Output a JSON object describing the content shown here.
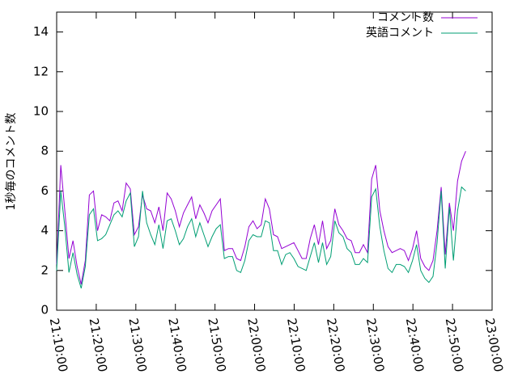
{
  "chart_data": {
    "type": "line",
    "y_label": "1秒毎のコメント数",
    "x": [
      "21:10:00",
      "21:11:02",
      "21:12:04",
      "21:13:06",
      "21:14:08",
      "21:15:10",
      "21:16:12",
      "21:17:14",
      "21:18:16",
      "21:19:18",
      "21:20:20",
      "21:21:22",
      "21:22:24",
      "21:23:26",
      "21:24:28",
      "21:25:30",
      "21:26:32",
      "21:27:34",
      "21:28:36",
      "21:29:38",
      "21:30:40",
      "21:31:42",
      "21:32:44",
      "21:33:46",
      "21:34:48",
      "21:35:50",
      "21:36:52",
      "21:37:54",
      "21:38:56",
      "21:39:58",
      "21:41:00",
      "21:42:02",
      "21:43:04",
      "21:44:06",
      "21:45:08",
      "21:46:10",
      "21:47:12",
      "21:48:14",
      "21:49:16",
      "21:50:18",
      "21:51:20",
      "21:52:22",
      "21:53:24",
      "21:54:26",
      "21:55:28",
      "21:56:30",
      "21:57:32",
      "21:58:34",
      "21:59:36",
      "22:00:38",
      "22:01:40",
      "22:02:42",
      "22:03:44",
      "22:04:46",
      "22:05:48",
      "22:06:50",
      "22:07:52",
      "22:08:54",
      "22:09:56",
      "22:10:58",
      "22:12:00",
      "22:13:02",
      "22:14:04",
      "22:15:06",
      "22:16:08",
      "22:17:10",
      "22:18:12",
      "22:19:14",
      "22:20:16",
      "22:21:18",
      "22:22:20",
      "22:23:22",
      "22:24:24",
      "22:25:26",
      "22:26:28",
      "22:27:30",
      "22:28:32",
      "22:29:34",
      "22:30:36",
      "22:31:38",
      "22:32:40",
      "22:33:42",
      "22:34:44",
      "22:35:46",
      "22:36:48",
      "22:37:50",
      "22:38:52",
      "22:39:54",
      "22:40:56",
      "22:41:58",
      "22:43:00",
      "22:44:02",
      "22:45:04",
      "22:46:06",
      "22:47:08",
      "22:48:10",
      "22:49:12",
      "22:50:14",
      "22:51:16",
      "22:52:18",
      "22:53:20"
    ],
    "series": [
      {
        "name": "コメント数",
        "color": "#9400d3",
        "values": [
          2.3,
          7.3,
          5.0,
          2.6,
          3.5,
          2.2,
          1.3,
          2.5,
          5.8,
          6.0,
          4.0,
          4.8,
          4.7,
          4.5,
          5.4,
          5.5,
          5.0,
          6.4,
          6.1,
          3.8,
          4.2,
          5.8,
          5.1,
          5.0,
          4.4,
          5.2,
          4.0,
          5.9,
          5.6,
          5.0,
          4.2,
          4.9,
          5.3,
          5.7,
          4.6,
          5.3,
          4.9,
          4.4,
          5.0,
          5.3,
          5.6,
          3.0,
          3.1,
          3.1,
          2.6,
          2.5,
          3.2,
          4.2,
          4.5,
          4.1,
          4.3,
          5.6,
          5.1,
          3.8,
          3.7,
          3.1,
          3.2,
          3.3,
          3.4,
          3.0,
          2.6,
          2.6,
          3.6,
          4.3,
          3.3,
          4.5,
          3.1,
          3.5,
          5.1,
          4.3,
          4.0,
          3.6,
          3.5,
          2.9,
          2.9,
          3.3,
          2.9,
          6.6,
          7.3,
          5.0,
          4.0,
          3.2,
          2.9,
          3.0,
          3.1,
          3.0,
          2.5,
          3.1,
          4.0,
          2.6,
          2.2,
          2.0,
          2.5,
          4.0,
          6.2,
          2.8,
          5.4,
          4.0,
          6.5,
          7.5,
          8.0
        ]
      },
      {
        "name": "英語コメント",
        "color": "#009e73",
        "values": [
          2.0,
          6.0,
          4.2,
          1.9,
          2.9,
          1.8,
          1.1,
          2.2,
          4.8,
          5.1,
          3.5,
          3.6,
          3.8,
          4.3,
          4.8,
          5.0,
          4.7,
          5.5,
          5.9,
          3.2,
          3.7,
          6.0,
          4.4,
          3.8,
          3.3,
          4.3,
          3.1,
          4.5,
          4.6,
          4.0,
          3.3,
          3.6,
          4.2,
          4.6,
          3.7,
          4.4,
          3.8,
          3.2,
          3.7,
          4.1,
          4.3,
          2.6,
          2.7,
          2.7,
          2.0,
          1.9,
          2.5,
          3.5,
          3.8,
          3.7,
          3.7,
          4.5,
          4.4,
          3.0,
          3.0,
          2.3,
          2.8,
          2.9,
          2.6,
          2.2,
          2.1,
          2.0,
          2.7,
          3.4,
          2.4,
          3.4,
          2.3,
          2.7,
          4.5,
          3.9,
          3.7,
          3.1,
          2.9,
          2.3,
          2.3,
          2.6,
          2.4,
          5.7,
          6.1,
          4.2,
          3.0,
          2.1,
          1.9,
          2.3,
          2.3,
          2.2,
          1.9,
          2.5,
          3.3,
          2.0,
          1.6,
          1.4,
          1.7,
          3.4,
          6.0,
          2.1,
          5.2,
          2.5,
          5.0,
          6.2,
          6.0
        ]
      }
    ],
    "xlim": [
      "21:10:00",
      "23:00:00"
    ],
    "xticks": [
      "21:10:00",
      "21:20:00",
      "21:30:00",
      "21:40:00",
      "21:50:00",
      "22:00:00",
      "22:10:00",
      "22:20:00",
      "22:30:00",
      "22:40:00",
      "22:50:00",
      "23:00:00"
    ],
    "ylim": [
      0,
      15
    ],
    "yticks": [
      0,
      2,
      4,
      6,
      8,
      10,
      12,
      14
    ],
    "legend": "top-right"
  }
}
